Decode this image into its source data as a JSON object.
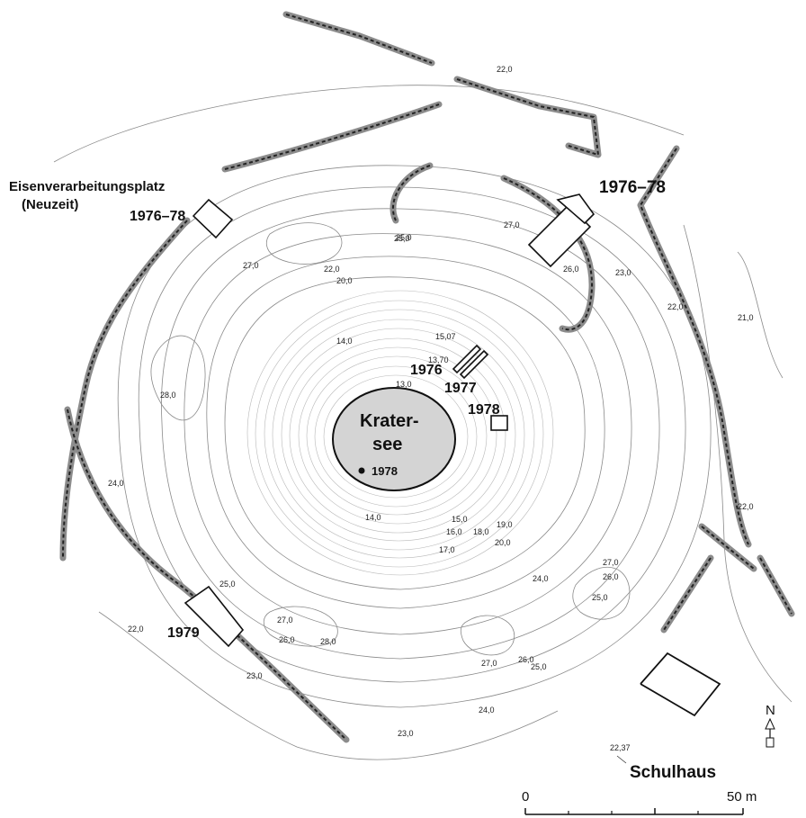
{
  "labels": {
    "eisen_line1": "Eisenverarbeitungsplatz",
    "eisen_line2": "(Neuzeit)",
    "trench_nw": "1976–78",
    "trench_ne": "1976–78",
    "trench_sw": "1979",
    "trench_1976": "1976",
    "trench_1977": "1977",
    "trench_1978": "1978",
    "lake_line1": "Krater-",
    "lake_line2": "see",
    "point_1978": "1978",
    "schulhaus": "Schulhaus"
  },
  "elevations": {
    "e1": "22,0",
    "e2": "27,0",
    "e3": "25,0",
    "e4": "26,0",
    "e5": "23,0",
    "e6": "22,0",
    "e7": "21,0",
    "e8": "27,0",
    "e9": "22,0",
    "e10": "20,0",
    "e11": "25,0",
    "e12": "15,07",
    "e13": "14,0",
    "e14": "13,70",
    "e15": "13,0",
    "e16": "28,0",
    "e17": "24,0",
    "e18": "14,0",
    "e19": "15,0",
    "e20": "16,0",
    "e21": "18,0",
    "e22": "19,0",
    "e23": "17,0",
    "e24": "20,0",
    "e25": "22,0",
    "e26": "27,0",
    "e27": "26,0",
    "e28": "24,0",
    "e29": "25,0",
    "e30": "25,0",
    "e31": "22,0",
    "e32": "27,0",
    "e33": "26,0",
    "e34": "28,0",
    "e35": "23,0",
    "e36": "27,0",
    "e37": "26,0",
    "e38": "25,0",
    "e39": "24,0",
    "e40": "23,0",
    "e41": "22,37"
  },
  "north": {
    "label": "N"
  },
  "scale": {
    "start": "0",
    "end": "50 m"
  }
}
